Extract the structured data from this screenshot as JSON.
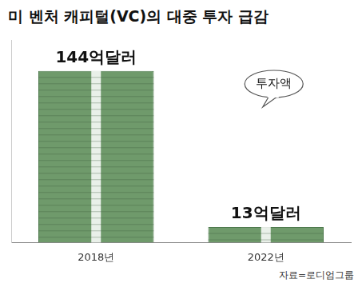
{
  "chart_data": {
    "type": "bar",
    "title": "미 벤처 캐피털(VC)의 대중 투자 급감",
    "categories": [
      "2018년",
      "2022년"
    ],
    "values": [
      144,
      13
    ],
    "value_labels": [
      "144억달러",
      "13억달러"
    ],
    "color": "#6f9a6b",
    "ylim": [
      0,
      170
    ],
    "grid": false,
    "data_labels": true,
    "tick_labels": "x",
    "annotations": [
      {
        "text": "투자액"
      }
    ],
    "source": "자료=로디엄그룹"
  }
}
